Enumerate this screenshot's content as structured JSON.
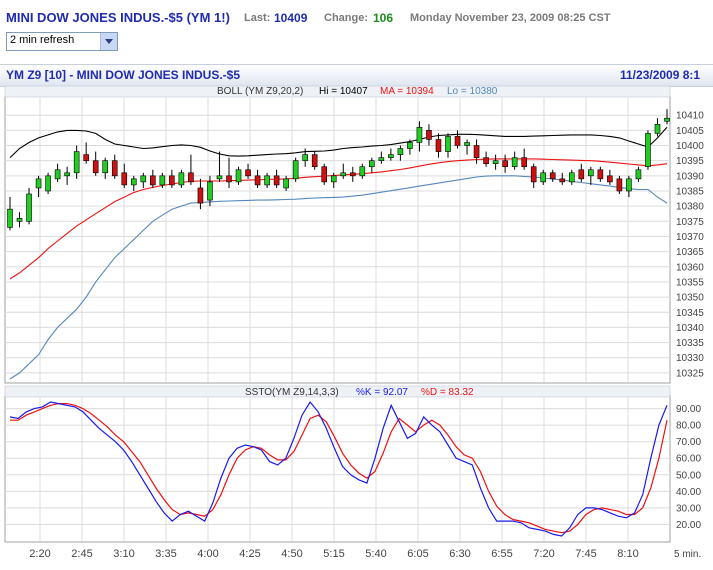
{
  "header": {
    "symbol_title": "MINI DOW JONES INDUS.-$5 (YM 1!)",
    "last_label": "Last:",
    "last_value": "10409",
    "change_label": "Change:",
    "change_value": "106",
    "datetime": "Monday November 23, 2009 08:25 CST",
    "refresh_select": "2 min refresh"
  },
  "chart_header": {
    "left": "YM Z9 [10] - MINI DOW JONES INDUS.-$5",
    "right": "11/23/2009 8:1"
  },
  "colors": {
    "up_candle": "#22cc22",
    "down_candle": "#cc1111",
    "boll_hi": "#000000",
    "boll_ma": "#ee1111",
    "boll_lo": "#5588bb",
    "sto_k": "#1a1aee",
    "sto_d": "#ee1111",
    "grid": "#dcdcdc"
  },
  "chart_data": [
    {
      "type": "candlestick",
      "indicator_label": "BOLL (YM Z9,20,2)",
      "hi_label": "Hi = 10407",
      "ma_label": "MA = 10394",
      "lo_label": "Lo = 10380",
      "ylim": [
        10322,
        10416
      ],
      "y_ticks": [
        "10410",
        "10405",
        "10400",
        "10395",
        "10390",
        "10385",
        "10380",
        "10375",
        "10370",
        "10365",
        "10360",
        "10355",
        "10350",
        "10345",
        "10340",
        "10335",
        "10330",
        "10325"
      ],
      "x_ticks": [
        "2:20",
        "2:45",
        "3:10",
        "3:35",
        "4:00",
        "4:25",
        "4:50",
        "5:15",
        "5:40",
        "6:05",
        "6:30",
        "6:55",
        "7:20",
        "7:45",
        "8:10"
      ],
      "x_unit": "5 min.",
      "grid": true,
      "candles": [
        {
          "o": 10373,
          "h": 10383,
          "l": 10372,
          "c": 10379
        },
        {
          "o": 10375,
          "h": 10378,
          "l": 10373,
          "c": 10376
        },
        {
          "o": 10375,
          "h": 10386,
          "l": 10374,
          "c": 10384
        },
        {
          "o": 10386,
          "h": 10390,
          "l": 10383,
          "c": 10389
        },
        {
          "o": 10385,
          "h": 10391,
          "l": 10384,
          "c": 10390
        },
        {
          "o": 10389,
          "h": 10394,
          "l": 10388,
          "c": 10392
        },
        {
          "o": 10390,
          "h": 10393,
          "l": 10387,
          "c": 10391
        },
        {
          "o": 10391,
          "h": 10400,
          "l": 10389,
          "c": 10398
        },
        {
          "o": 10397,
          "h": 10401,
          "l": 10394,
          "c": 10395
        },
        {
          "o": 10395,
          "h": 10398,
          "l": 10390,
          "c": 10391
        },
        {
          "o": 10391,
          "h": 10396,
          "l": 10389,
          "c": 10395
        },
        {
          "o": 10395,
          "h": 10397,
          "l": 10389,
          "c": 10390
        },
        {
          "o": 10391,
          "h": 10394,
          "l": 10386,
          "c": 10387
        },
        {
          "o": 10387,
          "h": 10390,
          "l": 10385,
          "c": 10389
        },
        {
          "o": 10388,
          "h": 10391,
          "l": 10386,
          "c": 10390
        },
        {
          "o": 10390,
          "h": 10392,
          "l": 10386,
          "c": 10387
        },
        {
          "o": 10387,
          "h": 10391,
          "l": 10386,
          "c": 10390
        },
        {
          "o": 10390,
          "h": 10392,
          "l": 10386,
          "c": 10387
        },
        {
          "o": 10387,
          "h": 10392,
          "l": 10386,
          "c": 10391
        },
        {
          "o": 10391,
          "h": 10397,
          "l": 10387,
          "c": 10388
        },
        {
          "o": 10386,
          "h": 10389,
          "l": 10379,
          "c": 10381
        },
        {
          "o": 10382,
          "h": 10390,
          "l": 10380,
          "c": 10388
        },
        {
          "o": 10389,
          "h": 10398,
          "l": 10388,
          "c": 10390
        },
        {
          "o": 10390,
          "h": 10396,
          "l": 10386,
          "c": 10388
        },
        {
          "o": 10388,
          "h": 10393,
          "l": 10387,
          "c": 10392
        },
        {
          "o": 10392,
          "h": 10394,
          "l": 10389,
          "c": 10390
        },
        {
          "o": 10390,
          "h": 10392,
          "l": 10386,
          "c": 10387
        },
        {
          "o": 10387,
          "h": 10391,
          "l": 10386,
          "c": 10390
        },
        {
          "o": 10390,
          "h": 10392,
          "l": 10386,
          "c": 10387
        },
        {
          "o": 10386,
          "h": 10390,
          "l": 10385,
          "c": 10389
        },
        {
          "o": 10389,
          "h": 10396,
          "l": 10388,
          "c": 10395
        },
        {
          "o": 10395,
          "h": 10399,
          "l": 10393,
          "c": 10397
        },
        {
          "o": 10397,
          "h": 10398,
          "l": 10392,
          "c": 10393
        },
        {
          "o": 10393,
          "h": 10394,
          "l": 10387,
          "c": 10388
        },
        {
          "o": 10388,
          "h": 10391,
          "l": 10386,
          "c": 10390
        },
        {
          "o": 10390,
          "h": 10394,
          "l": 10389,
          "c": 10391
        },
        {
          "o": 10391,
          "h": 10393,
          "l": 10388,
          "c": 10390
        },
        {
          "o": 10390,
          "h": 10394,
          "l": 10389,
          "c": 10393
        },
        {
          "o": 10393,
          "h": 10396,
          "l": 10391,
          "c": 10395
        },
        {
          "o": 10395,
          "h": 10398,
          "l": 10394,
          "c": 10396
        },
        {
          "o": 10396,
          "h": 10399,
          "l": 10395,
          "c": 10397
        },
        {
          "o": 10397,
          "h": 10400,
          "l": 10395,
          "c": 10399
        },
        {
          "o": 10399,
          "h": 10402,
          "l": 10397,
          "c": 10401
        },
        {
          "o": 10401,
          "h": 10408,
          "l": 10398,
          "c": 10406
        },
        {
          "o": 10405,
          "h": 10407,
          "l": 10400,
          "c": 10402
        },
        {
          "o": 10402,
          "h": 10404,
          "l": 10396,
          "c": 10398
        },
        {
          "o": 10398,
          "h": 10404,
          "l": 10396,
          "c": 10403
        },
        {
          "o": 10403,
          "h": 10405,
          "l": 10399,
          "c": 10400
        },
        {
          "o": 10400,
          "h": 10402,
          "l": 10397,
          "c": 10401
        },
        {
          "o": 10400,
          "h": 10402,
          "l": 10394,
          "c": 10396
        },
        {
          "o": 10396,
          "h": 10398,
          "l": 10393,
          "c": 10394
        },
        {
          "o": 10394,
          "h": 10397,
          "l": 10392,
          "c": 10395
        },
        {
          "o": 10395,
          "h": 10397,
          "l": 10391,
          "c": 10393
        },
        {
          "o": 10393,
          "h": 10398,
          "l": 10392,
          "c": 10396
        },
        {
          "o": 10396,
          "h": 10399,
          "l": 10392,
          "c": 10393
        },
        {
          "o": 10393,
          "h": 10394,
          "l": 10386,
          "c": 10388
        },
        {
          "o": 10388,
          "h": 10392,
          "l": 10387,
          "c": 10391
        },
        {
          "o": 10391,
          "h": 10392,
          "l": 10388,
          "c": 10389
        },
        {
          "o": 10389,
          "h": 10391,
          "l": 10387,
          "c": 10388
        },
        {
          "o": 10388,
          "h": 10392,
          "l": 10387,
          "c": 10391
        },
        {
          "o": 10392,
          "h": 10394,
          "l": 10388,
          "c": 10389
        },
        {
          "o": 10390,
          "h": 10393,
          "l": 10387,
          "c": 10392
        },
        {
          "o": 10392,
          "h": 10393,
          "l": 10388,
          "c": 10389
        },
        {
          "o": 10390,
          "h": 10392,
          "l": 10387,
          "c": 10388
        },
        {
          "o": 10389,
          "h": 10390,
          "l": 10384,
          "c": 10385
        },
        {
          "o": 10385,
          "h": 10390,
          "l": 10383,
          "c": 10389
        },
        {
          "o": 10389,
          "h": 10393,
          "l": 10388,
          "c": 10392
        },
        {
          "o": 10393,
          "h": 10405,
          "l": 10392,
          "c": 10404
        },
        {
          "o": 10404,
          "h": 10409,
          "l": 10403,
          "c": 10407
        },
        {
          "o": 10408,
          "h": 10412,
          "l": 10407,
          "c": 10409
        }
      ],
      "boll_hi": [
        10396,
        10399,
        10401,
        10402.5,
        10403.5,
        10404.5,
        10405,
        10405,
        10404.8,
        10404,
        10402,
        10400.5,
        10400,
        10399.5,
        10399,
        10399.2,
        10399.6,
        10400,
        10400.2,
        10400,
        10399.4,
        10398.2,
        10397.2,
        10396.6,
        10396.5,
        10396.6,
        10396.8,
        10397,
        10397.2,
        10397.3,
        10397.6,
        10398,
        10398.1,
        10398.2,
        10398.5,
        10399,
        10399.3,
        10399.5,
        10399.8,
        10400,
        10400.3,
        10400.8,
        10401.3,
        10402,
        10402.8,
        10403.3,
        10403.5,
        10403.7,
        10403.7,
        10403.6,
        10403.4,
        10403.2,
        10403,
        10403,
        10403,
        10403.1,
        10403.2,
        10403.3,
        10403.4,
        10403.5,
        10403.5,
        10403.5,
        10403.3,
        10403,
        10402.5,
        10401.5,
        10400.5,
        10399.5,
        10402.5,
        10406
      ],
      "boll_ma": [
        10356,
        10358,
        10360.5,
        10363,
        10366,
        10368.5,
        10371,
        10373.5,
        10375.5,
        10377.5,
        10379.5,
        10381.5,
        10383,
        10384.5,
        10385.5,
        10386.2,
        10386.8,
        10387.3,
        10387.8,
        10388.2,
        10388.3,
        10388.3,
        10388.3,
        10388.4,
        10388.5,
        10388.6,
        10388.7,
        10388.8,
        10388.9,
        10389,
        10389.2,
        10389.5,
        10389.7,
        10389.9,
        10390.1,
        10390.3,
        10390.5,
        10390.7,
        10391,
        10391.3,
        10391.7,
        10392.1,
        10392.6,
        10393.2,
        10393.8,
        10394.3,
        10394.7,
        10395,
        10395.2,
        10395.4,
        10395.5,
        10395.6,
        10395.6,
        10395.6,
        10395.6,
        10395.6,
        10395.5,
        10395.4,
        10395.3,
        10395.2,
        10395.1,
        10395,
        10394.8,
        10394.5,
        10394.2,
        10393.9,
        10393.6,
        10393.3,
        10393.6,
        10394
      ],
      "boll_lo": [
        10323,
        10325,
        10328,
        10331,
        10336,
        10340,
        10343,
        10346,
        10350,
        10355,
        10359,
        10363,
        10366,
        10369,
        10372,
        10375,
        10377,
        10379,
        10380,
        10381,
        10381.2,
        10381.4,
        10381.6,
        10381.7,
        10381.8,
        10381.9,
        10382,
        10382,
        10382.1,
        10382.2,
        10382.3,
        10382.5,
        10382.7,
        10382.8,
        10382.9,
        10383,
        10383.3,
        10383.6,
        10384.1,
        10384.6,
        10385.1,
        10385.6,
        10386.1,
        10386.6,
        10387.1,
        10387.6,
        10388.1,
        10388.6,
        10389.1,
        10389.6,
        10389.9,
        10390,
        10390,
        10390,
        10389.8,
        10389.6,
        10389.3,
        10389,
        10388.6,
        10388.2,
        10387.8,
        10387.4,
        10387,
        10386.6,
        10386.2,
        10385.8,
        10385.5,
        10385.5,
        10383,
        10381
      ]
    },
    {
      "type": "line",
      "indicator_label": "SSTO(YM Z9,14,3,3)",
      "k_label": "%K = 92.07",
      "d_label": "%D = 83.32",
      "ylim": [
        10,
        97
      ],
      "y_ticks": [
        "90.00",
        "80.00",
        "70.00",
        "60.00",
        "50.00",
        "40.00",
        "30.00",
        "20.00"
      ],
      "series": [
        {
          "name": "%K",
          "values": [
            85,
            84,
            88,
            90,
            91,
            94,
            93,
            92,
            91,
            88,
            83,
            78,
            74,
            70,
            65,
            58,
            50,
            42,
            34,
            27,
            22,
            26,
            28,
            25,
            22,
            33,
            48,
            60,
            66,
            68,
            67,
            65,
            58,
            56,
            60,
            72,
            86,
            94,
            88,
            78,
            66,
            55,
            50,
            47,
            45,
            60,
            78,
            92,
            82,
            72,
            75,
            85,
            80,
            76,
            68,
            60,
            58,
            56,
            42,
            30,
            22,
            22,
            22,
            21,
            18,
            17,
            16,
            14,
            13,
            18,
            26,
            30,
            30,
            29,
            27,
            25,
            24,
            27,
            38,
            60,
            80,
            92
          ]
        },
        {
          "name": "%D",
          "values": [
            83,
            83,
            86,
            88,
            90,
            92,
            93,
            93,
            92,
            90,
            87,
            83,
            79,
            74,
            70,
            64,
            58,
            50,
            42,
            35,
            29,
            26,
            27,
            26,
            25,
            29,
            38,
            50,
            60,
            65,
            67,
            66,
            62,
            59,
            59,
            64,
            74,
            84,
            86,
            82,
            73,
            63,
            56,
            51,
            48,
            52,
            63,
            76,
            84,
            80,
            76,
            80,
            83,
            80,
            74,
            67,
            62,
            60,
            52,
            40,
            31,
            26,
            23,
            22,
            21,
            19,
            17,
            16,
            15,
            16,
            20,
            26,
            29,
            30,
            29,
            28,
            26,
            26,
            30,
            42,
            60,
            83
          ]
        }
      ],
      "x_ticks": [
        "2:20",
        "2:45",
        "3:10",
        "3:35",
        "4:00",
        "4:25",
        "4:50",
        "5:15",
        "5:40",
        "6:05",
        "6:30",
        "6:55",
        "7:20",
        "7:45",
        "8:10"
      ],
      "x_unit": "5 min.",
      "grid": true
    }
  ]
}
